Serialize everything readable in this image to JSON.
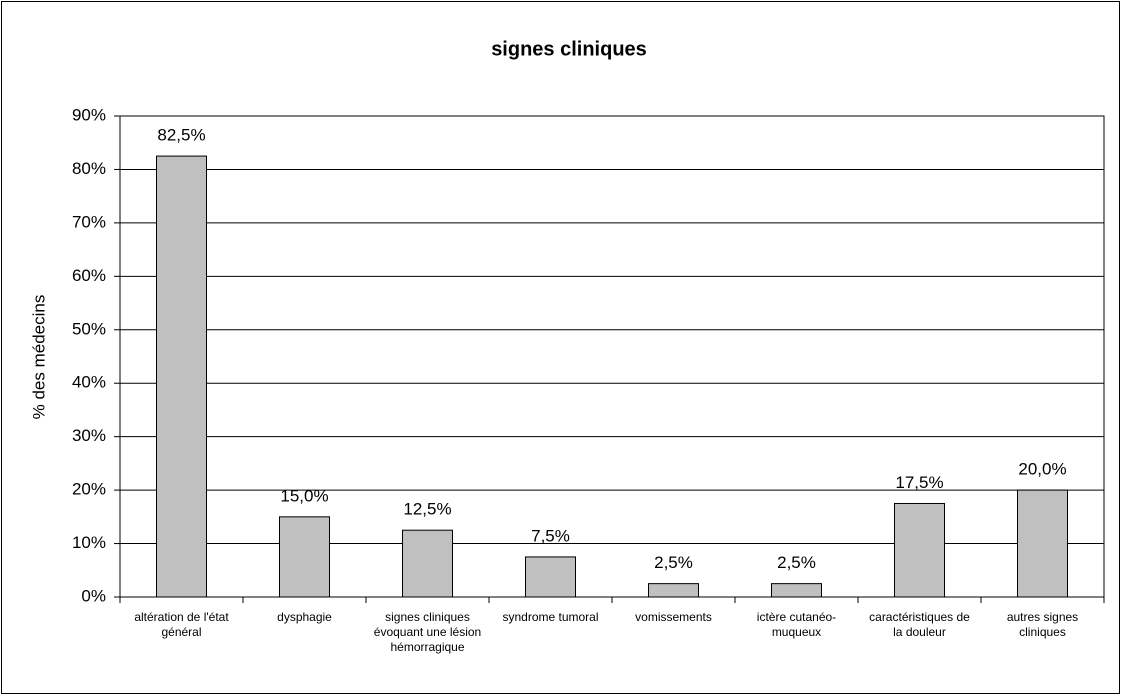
{
  "chart_data": {
    "type": "bar",
    "title": "signes cliniques",
    "y_label": "% des médecins",
    "categories": [
      "altération de l'état général",
      "dysphagie",
      "signes cliniques évoquant une lésion hémorragique",
      "syndrome tumoral",
      "vomissements",
      "ictère cutanéo-muqueux",
      "caractéristiques de la douleur",
      "autres signes cliniques"
    ],
    "values": [
      82.5,
      15.0,
      12.5,
      7.5,
      2.5,
      2.5,
      17.5,
      20.0
    ],
    "value_labels": [
      "82,5%",
      "15,0%",
      "12,5%",
      "7,5%",
      "2,5%",
      "2,5%",
      "17,5%",
      "20,0%"
    ],
    "color": "#c0c0c0",
    "ylim": [
      0,
      90
    ],
    "yticks": [
      {
        "value": 0,
        "label": "0%"
      },
      {
        "value": 10,
        "label": "10%"
      },
      {
        "value": 20,
        "label": "20%"
      },
      {
        "value": 30,
        "label": "30%"
      },
      {
        "value": 40,
        "label": "40%"
      },
      {
        "value": 50,
        "label": "50%"
      },
      {
        "value": 60,
        "label": "60%"
      },
      {
        "value": 70,
        "label": "70%"
      },
      {
        "value": 80,
        "label": "80%"
      },
      {
        "value": 90,
        "label": "90%"
      }
    ],
    "grid": true
  }
}
